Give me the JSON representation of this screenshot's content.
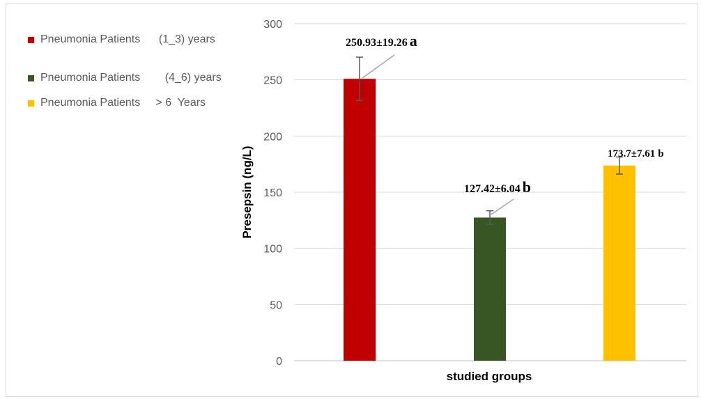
{
  "chart_data": {
    "type": "bar",
    "xlabel": "studied groups",
    "ylabel": "Presepsin (ng/L)",
    "ylim": [
      0,
      300
    ],
    "yticks": [
      0,
      50,
      100,
      150,
      200,
      250,
      300
    ],
    "grid": true,
    "legend_position": "left",
    "series": [
      {
        "name": "Pneumonia Patients      (1_3) years",
        "value": 250.93,
        "error": 19.26,
        "color": "#c00000",
        "label_value": "250.93±19.26",
        "label_letter": "a"
      },
      {
        "name": "Pneumonia Patients        (4_6) years",
        "value": 127.42,
        "error": 6.04,
        "color": "#375623",
        "label_value": "127.42±6.04",
        "label_letter": "b"
      },
      {
        "name": "Pneumonia Patients     > 6  Years",
        "value": 173.7,
        "error": 7.61,
        "color": "#ffc000",
        "label_value": "173.7±7.61",
        "label_letter": "b"
      }
    ]
  }
}
